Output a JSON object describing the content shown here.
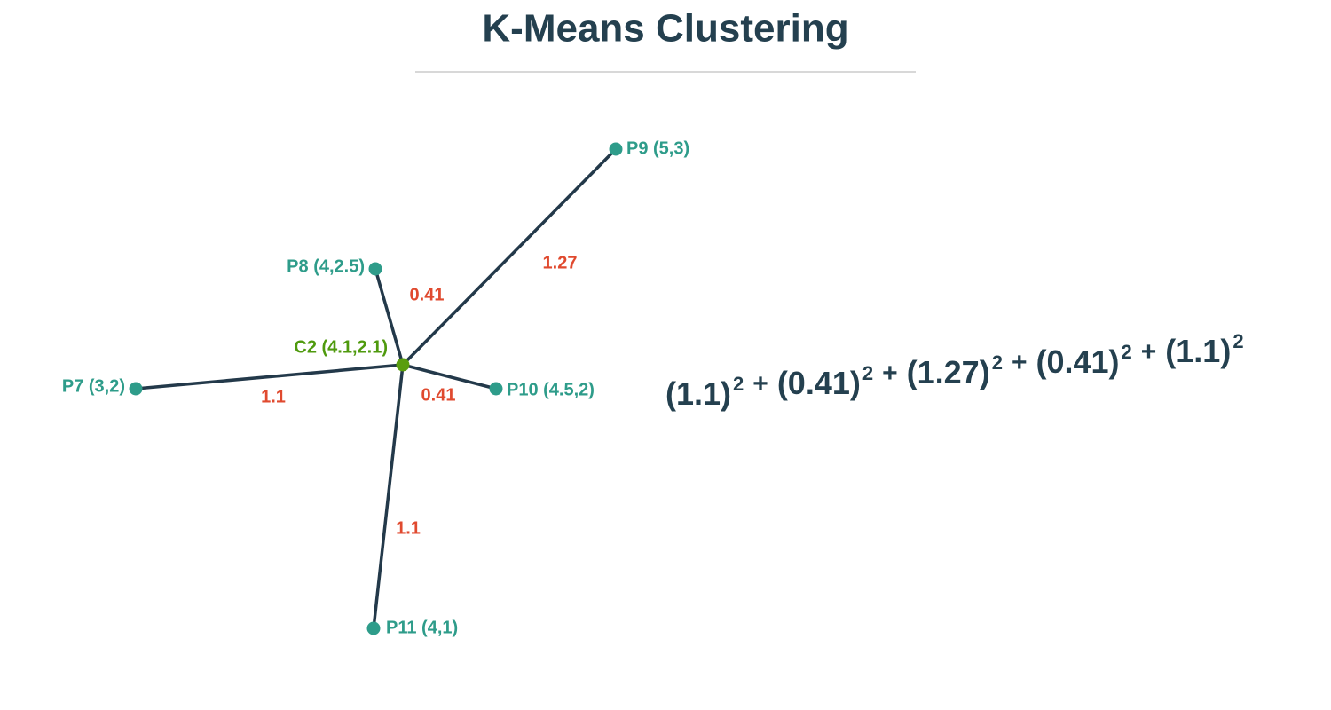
{
  "title": "K-Means Clustering",
  "centroid": {
    "label": "C2 (4.1,2.1)"
  },
  "nodes": [
    {
      "label": "P9 (5,3)"
    },
    {
      "label": "P8 (4,2.5)"
    },
    {
      "label": "P7 (3,2)"
    },
    {
      "label": "P10 (4.5,2)"
    },
    {
      "label": "P11 (4,1)"
    }
  ],
  "edges": [
    {
      "label": "1.27"
    },
    {
      "label": "0.41"
    },
    {
      "label": "1.1"
    },
    {
      "label": "0.41"
    },
    {
      "label": "1.1"
    }
  ],
  "formula": {
    "terms": [
      {
        "base": "(1.1)",
        "exponent": "2"
      },
      {
        "base": "(0.41)",
        "exponent": "2"
      },
      {
        "base": "(1.27)",
        "exponent": "2"
      },
      {
        "base": "(0.41)",
        "exponent": "2"
      },
      {
        "base": "(1.1)",
        "exponent": "2"
      }
    ],
    "operators": [
      "+",
      "+",
      "+",
      "+"
    ]
  }
}
